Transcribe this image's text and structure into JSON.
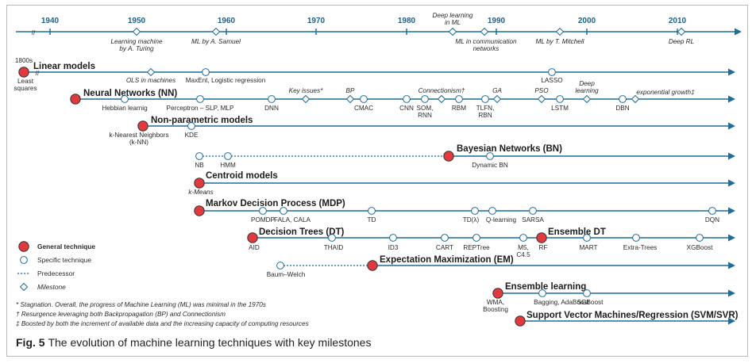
{
  "timeline": {
    "years": [
      "1940",
      "1950",
      "1960",
      "1970",
      "1980",
      "1990",
      "2000",
      "2010"
    ],
    "milestones": [
      [
        "Learning machine",
        "by A. Turing"
      ],
      [
        "ML by A. Samuel"
      ],
      [
        "Deep learning",
        "in ML"
      ],
      [
        "ML in communication",
        "networks"
      ],
      [
        "ML by T. Mitchell"
      ],
      [
        "Deep RL"
      ]
    ]
  },
  "tracks": {
    "linear": {
      "title": "Linear models",
      "start_year": "1800s",
      "start_label": [
        "Least",
        "squares"
      ],
      "labels": {
        "ols": "OLS in machines",
        "maxent": "MaxEnt, Logistic regression",
        "lasso": "LASSO"
      }
    },
    "nn": {
      "title": "Neural Networks (NN)",
      "labels": {
        "hebbian": "Hebbian learnig",
        "perceptron": "Perceptron – SLP, MLP",
        "dnn": "DNN",
        "key_issues": "Key issues*",
        "bp": "BP",
        "cmac": "CMAC",
        "cnn": "CNN",
        "som": [
          "SOM,",
          "RNN"
        ],
        "connectionism": "Connectionism†",
        "rbm": "RBM",
        "tlfn": [
          "TLFN,",
          "RBN"
        ],
        "ga": "GA",
        "pso": "PSO",
        "lstm": "LSTM",
        "deep_learning": [
          "Deep",
          "learning"
        ],
        "dbn": "DBN",
        "exp_growth": "exponential growth‡"
      }
    },
    "nonparam": {
      "title": "Non-parametric models",
      "labels": {
        "knn": [
          "k-Nearest Neighbors",
          "(k-NN)"
        ],
        "kde": "KDE"
      }
    },
    "bn": {
      "title": "Bayesian Networks (BN)",
      "labels": {
        "nb": "NB",
        "hmm": "HMM",
        "dynamic_bn": "Dynamic BN"
      }
    },
    "centroid": {
      "title": "Centroid models",
      "labels": {
        "kmeans": "k-Means"
      }
    },
    "mdp": {
      "title": "Markov Decision Process (MDP)",
      "labels": {
        "pomdp": "POMDP",
        "fala": "FALA, CALA",
        "td": "TD",
        "tdl": "TD(λ)",
        "qlearn": "Q-learning",
        "sarsa": "SARSA",
        "dqn": "DQN"
      }
    },
    "dt": {
      "title": "Decision Trees (DT)",
      "labels": {
        "aid": "AID",
        "thaid": "THAID",
        "id3": "ID3",
        "cart": "CART",
        "reptree": "REPTree",
        "m5": [
          "M5,",
          "C4.5"
        ],
        "rf": "RF",
        "mart": "MART",
        "extra": "Extra-Trees",
        "xgb": "XGBoost"
      }
    },
    "ensemble_dt": {
      "title": "Ensemble DT"
    },
    "em": {
      "title": "Expectation Maximization (EM)",
      "labels": {
        "baum": "Baum–Welch"
      }
    },
    "ensemble": {
      "title": "Ensemble learning",
      "labels": {
        "wma": [
          "WMA,",
          "Boosting"
        ],
        "bagging": "Bagging, AdaBoost",
        "sgboost": "SGBoost"
      }
    },
    "svm": {
      "title": "Support Vector Machines/Regression (SVM/SVR)"
    }
  },
  "legend": {
    "general": "General technique",
    "specific": "Specific technique",
    "predecessor": "Predecessor",
    "milestone": "Milestone"
  },
  "footnotes": [
    "* Stagnation. Overall,  the progress of  Machine Learning (ML) was minimal in the 1970s",
    "† Resurgence leveraging both Backpropagation (BP) and Connectionism",
    "‡ Boosted by both the increment of available data and the increasing capacity of computing  resources"
  ],
  "caption": {
    "fig": "Fig. 5",
    "text": " The evolution of machine learning techniques with key milestones"
  },
  "colors": {
    "line": "#1f6d9b",
    "general": "#e03a3e",
    "text": "#2a2a2a"
  }
}
